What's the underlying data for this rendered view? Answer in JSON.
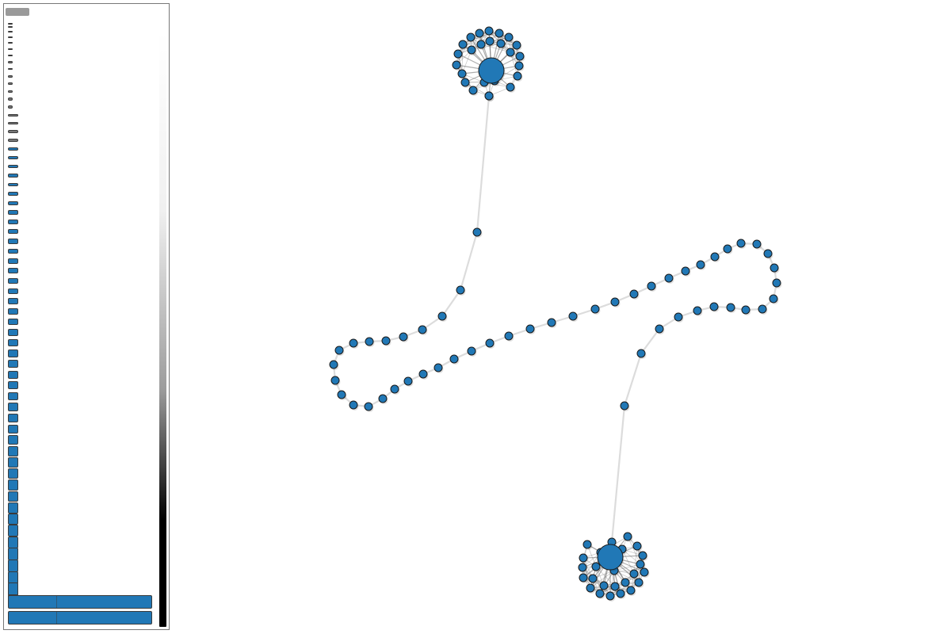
{
  "palette": {
    "node_fill": "#2178b6",
    "node_stroke": "#1a1a1a",
    "edge": "#dcdcdc",
    "hub_edge": "#6b6b6b",
    "panel_border": "#777777",
    "handle": "#9a9a9a",
    "mini_bar_grey": "#777777",
    "gradient_top": "#ffffff",
    "gradient_bottom": "#000000"
  },
  "graph": {
    "hubs": [
      {
        "id": "hub-top",
        "satellite_count": 24
      },
      {
        "id": "hub-bottom",
        "satellite_count": 24
      }
    ],
    "chain_node_count": 62
  },
  "side_panel": {
    "bar_count": 64
  }
}
